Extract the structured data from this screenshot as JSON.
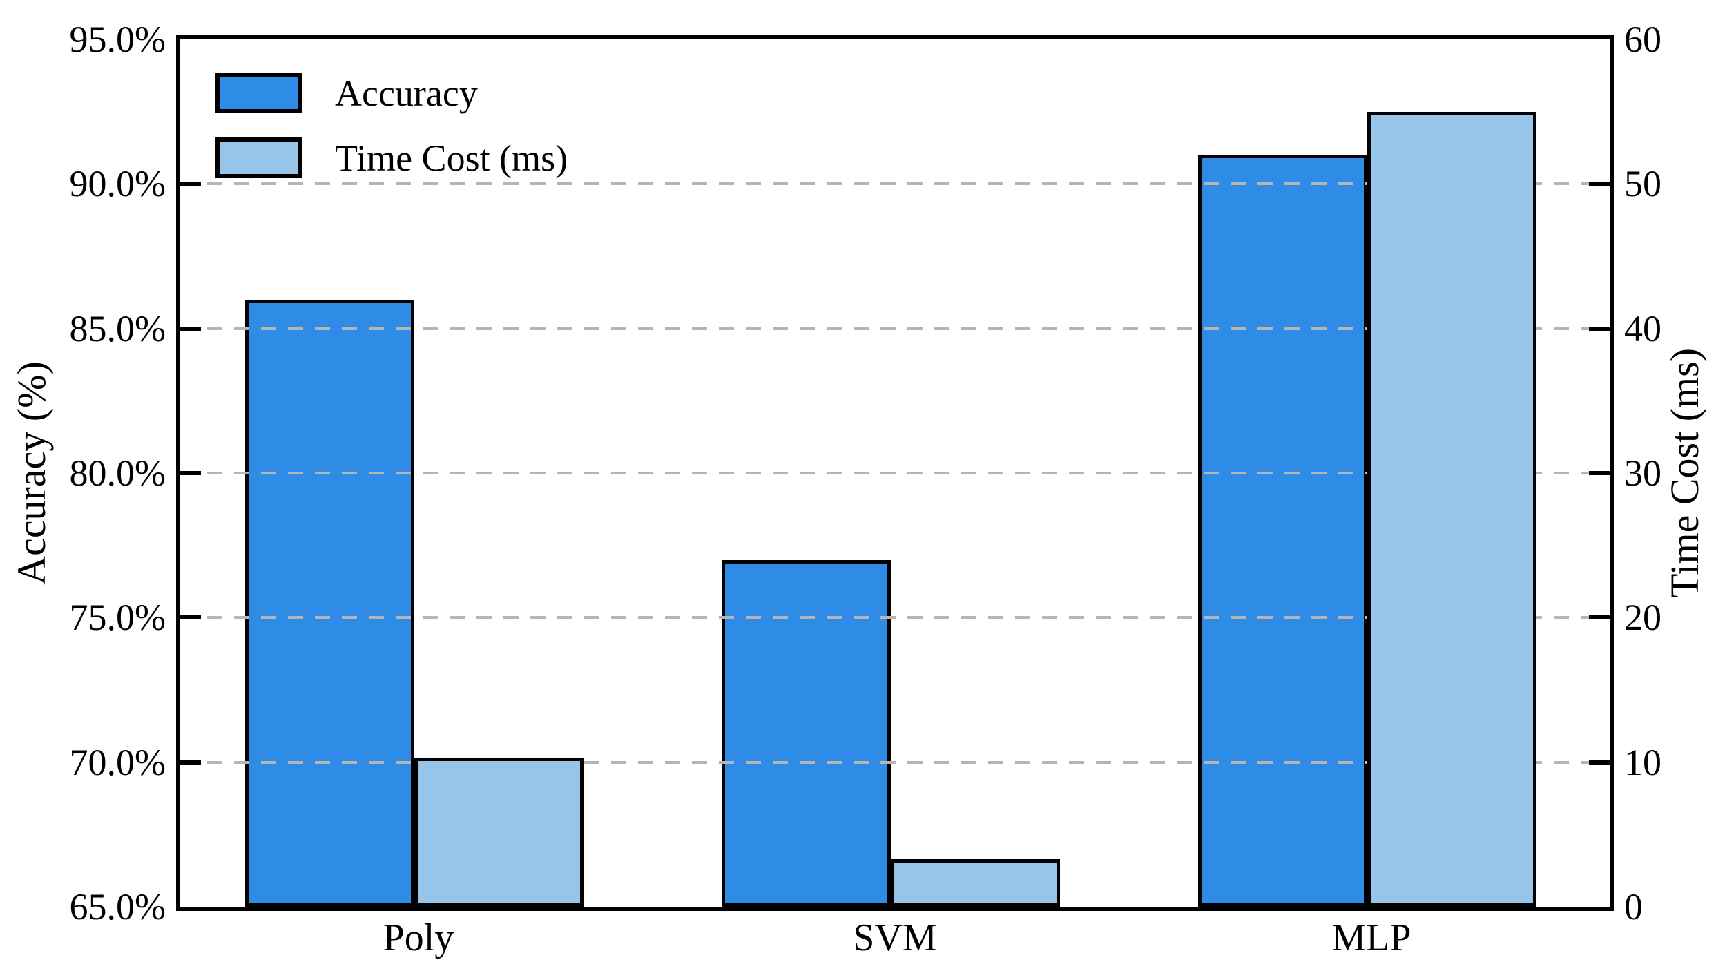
{
  "chart_data": {
    "type": "bar",
    "categories": [
      "Poly",
      "SVM",
      "MLP"
    ],
    "series": [
      {
        "name": "Accuracy",
        "axis": "left",
        "color": "#2F8CE6",
        "values": [
          86.0,
          77.0,
          91.0
        ]
      },
      {
        "name": "Time Cost (ms)",
        "axis": "right",
        "color": "#96C5E9",
        "values": [
          10.3,
          3.3,
          55.0
        ]
      }
    ],
    "title": "",
    "xlabel": "",
    "ylabel_left": "Accuracy (%)",
    "ylabel_right": "Time Cost (ms)",
    "ylim_left": [
      65,
      95
    ],
    "ylim_right": [
      0,
      60
    ],
    "yticks_left": {
      "values": [
        95,
        90,
        85,
        80,
        75,
        70,
        65
      ],
      "labels": [
        "95.0%",
        "90.0%",
        "85.0%",
        "80.0%",
        "75.0%",
        "70.0%",
        "65.0%"
      ]
    },
    "yticks_right": {
      "values": [
        60,
        50,
        40,
        30,
        20,
        10,
        0
      ],
      "labels": [
        "60",
        "50",
        "40",
        "30",
        "20",
        "10",
        "0"
      ]
    },
    "grid_values_left_axis": [
      90,
      85,
      80,
      75,
      70
    ],
    "grid_style": "horizontal dashed, drawn above Accuracy bars and below Time Cost bars",
    "grid_color": "#b5b5b5",
    "bar_edge_color": "#000000",
    "legend_position": "upper left inside plot, no frame",
    "legend_entries": [
      "Accuracy",
      "Time Cost (ms)"
    ]
  }
}
